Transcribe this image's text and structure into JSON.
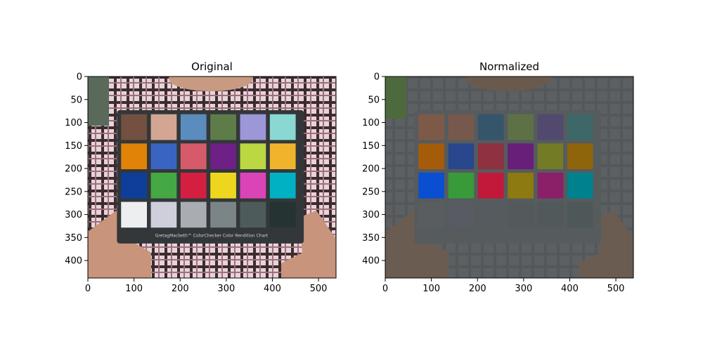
{
  "chart_data": [
    {
      "type": "image",
      "title": "Original",
      "xlabel": "",
      "ylabel": "",
      "xlim": [
        0,
        538
      ],
      "ylim": [
        438,
        0
      ],
      "x_ticks": [
        0,
        100,
        200,
        300,
        400,
        500
      ],
      "y_ticks": [
        0,
        50,
        100,
        150,
        200,
        250,
        300,
        350,
        400
      ],
      "grid": false,
      "content": {
        "board_bg": "#33373a",
        "chart_caption": "GretagMacbeth™ ColorChecker Color Rendition Chart",
        "patch_colors": [
          [
            "#745040",
            "#d3a694",
            "#5a8cbe",
            "#5d7c48",
            "#9c97d7",
            "#8ad8d2"
          ],
          [
            "#e08306",
            "#3a64c2",
            "#d55b6b",
            "#6e2086",
            "#bbd742",
            "#f0b32c"
          ],
          [
            "#0d3f9a",
            "#45a844",
            "#d51f40",
            "#eed61e",
            "#db44b6",
            "#00b1c4"
          ],
          [
            "#eceef0",
            "#cfcfdb",
            "#a9adb2",
            "#7b8486",
            "#4d5b5b",
            "#263333"
          ]
        ]
      }
    },
    {
      "type": "image",
      "title": "Normalized",
      "xlabel": "",
      "ylabel": "",
      "xlim": [
        0,
        538
      ],
      "ylim": [
        438,
        0
      ],
      "x_ticks": [
        0,
        100,
        200,
        300,
        400,
        500
      ],
      "y_ticks": [
        0,
        50,
        100,
        150,
        200,
        250,
        300,
        350,
        400
      ],
      "grid": false,
      "content": {
        "board_bg": "#565b5e",
        "patch_colors": [
          [
            "#7d5a48",
            "#77584c",
            "#35556b",
            "#5e7146",
            "#52496e",
            "#3e6868"
          ],
          [
            "#a55c0a",
            "#28478c",
            "#8f3140",
            "#681f7a",
            "#737b26",
            "#8e650c"
          ],
          [
            "#0a4fd2",
            "#389a38",
            "#c2193a",
            "#8d7a10",
            "#8b2068",
            "#00828e"
          ],
          [
            "#5a5d60",
            "#585c62",
            "#565b5f",
            "#54595c",
            "#52595a",
            "#4f5858"
          ]
        ]
      }
    }
  ]
}
